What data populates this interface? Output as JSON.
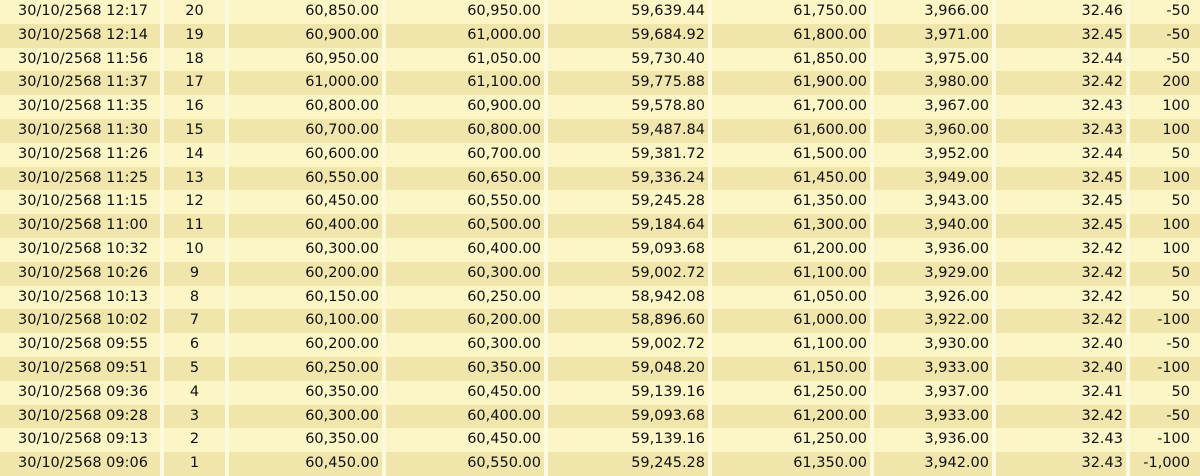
{
  "table": {
    "rows": [
      [
        "30/10/2568 12:17",
        "20",
        "60,850.00",
        "60,950.00",
        "59,639.44",
        "61,750.00",
        "3,966.00",
        "32.46",
        "-50"
      ],
      [
        "30/10/2568 12:14",
        "19",
        "60,900.00",
        "61,000.00",
        "59,684.92",
        "61,800.00",
        "3,971.00",
        "32.45",
        "-50"
      ],
      [
        "30/10/2568 11:56",
        "18",
        "60,950.00",
        "61,050.00",
        "59,730.40",
        "61,850.00",
        "3,975.00",
        "32.44",
        "-50"
      ],
      [
        "30/10/2568 11:37",
        "17",
        "61,000.00",
        "61,100.00",
        "59,775.88",
        "61,900.00",
        "3,980.00",
        "32.42",
        "200"
      ],
      [
        "30/10/2568 11:35",
        "16",
        "60,800.00",
        "60,900.00",
        "59,578.80",
        "61,700.00",
        "3,967.00",
        "32.43",
        "100"
      ],
      [
        "30/10/2568 11:30",
        "15",
        "60,700.00",
        "60,800.00",
        "59,487.84",
        "61,600.00",
        "3,960.00",
        "32.43",
        "100"
      ],
      [
        "30/10/2568 11:26",
        "14",
        "60,600.00",
        "60,700.00",
        "59,381.72",
        "61,500.00",
        "3,952.00",
        "32.44",
        "50"
      ],
      [
        "30/10/2568 11:25",
        "13",
        "60,550.00",
        "60,650.00",
        "59,336.24",
        "61,450.00",
        "3,949.00",
        "32.45",
        "100"
      ],
      [
        "30/10/2568 11:15",
        "12",
        "60,450.00",
        "60,550.00",
        "59,245.28",
        "61,350.00",
        "3,943.00",
        "32.45",
        "50"
      ],
      [
        "30/10/2568 11:00",
        "11",
        "60,400.00",
        "60,500.00",
        "59,184.64",
        "61,300.00",
        "3,940.00",
        "32.45",
        "100"
      ],
      [
        "30/10/2568 10:32",
        "10",
        "60,300.00",
        "60,400.00",
        "59,093.68",
        "61,200.00",
        "3,936.00",
        "32.42",
        "100"
      ],
      [
        "30/10/2568 10:26",
        "9",
        "60,200.00",
        "60,300.00",
        "59,002.72",
        "61,100.00",
        "3,929.00",
        "32.42",
        "50"
      ],
      [
        "30/10/2568 10:13",
        "8",
        "60,150.00",
        "60,250.00",
        "58,942.08",
        "61,050.00",
        "3,926.00",
        "32.42",
        "50"
      ],
      [
        "30/10/2568 10:02",
        "7",
        "60,100.00",
        "60,200.00",
        "58,896.60",
        "61,000.00",
        "3,922.00",
        "32.42",
        "-100"
      ],
      [
        "30/10/2568 09:55",
        "6",
        "60,200.00",
        "60,300.00",
        "59,002.72",
        "61,100.00",
        "3,930.00",
        "32.40",
        "-50"
      ],
      [
        "30/10/2568 09:51",
        "5",
        "60,250.00",
        "60,350.00",
        "59,048.20",
        "61,150.00",
        "3,933.00",
        "32.40",
        "-100"
      ],
      [
        "30/10/2568 09:36",
        "4",
        "60,350.00",
        "60,450.00",
        "59,139.16",
        "61,250.00",
        "3,937.00",
        "32.41",
        "50"
      ],
      [
        "30/10/2568 09:28",
        "3",
        "60,300.00",
        "60,400.00",
        "59,093.68",
        "61,200.00",
        "3,933.00",
        "32.42",
        "-50"
      ],
      [
        "30/10/2568 09:13",
        "2",
        "60,350.00",
        "60,450.00",
        "59,139.16",
        "61,250.00",
        "3,936.00",
        "32.43",
        "-100"
      ],
      [
        "30/10/2568 09:06",
        "1",
        "60,450.00",
        "60,550.00",
        "59,245.28",
        "61,350.00",
        "3,942.00",
        "32.43",
        "-1,000"
      ]
    ]
  }
}
